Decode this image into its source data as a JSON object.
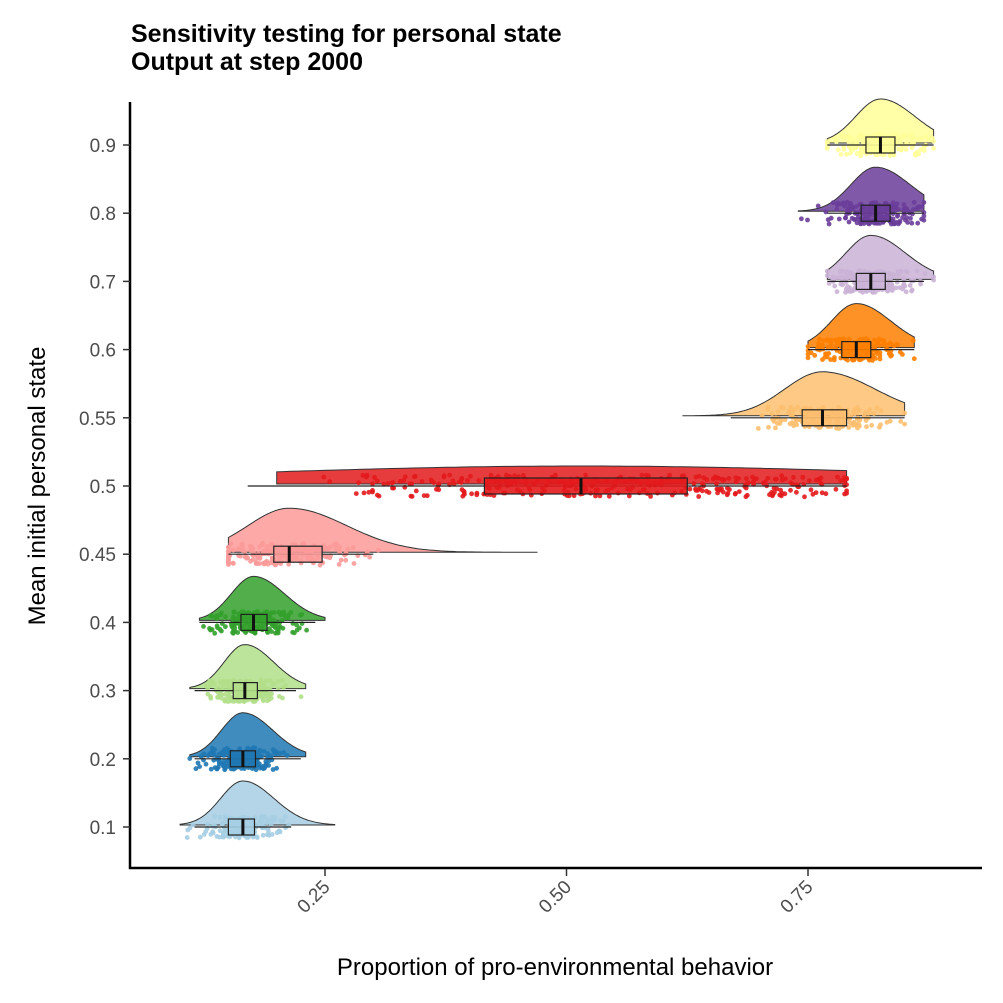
{
  "chart_data": {
    "type": "raincloud",
    "title": "Sensitivity testing for personal state",
    "subtitle": "Output at step 2000",
    "xlabel": "Proportion of pro-environmental behavior",
    "ylabel": "Mean initial personal state",
    "xlim": [
      0.05,
      0.91
    ],
    "x_ticks": [
      "0.25",
      "0.50",
      "0.75"
    ],
    "x_tick_values": [
      0.25,
      0.5,
      0.75
    ],
    "y_ticks": [
      "0.1",
      "0.2",
      "0.3",
      "0.4",
      "0.45",
      "0.5",
      "0.55",
      "0.6",
      "0.7",
      "0.8",
      "0.9"
    ],
    "grid": false,
    "legend": "none",
    "series": [
      {
        "name": "0.1",
        "color": "#a6cee3",
        "min": 0.1,
        "q1": 0.15,
        "median": 0.165,
        "q3": 0.177,
        "max": 0.26,
        "whisker_low": 0.115,
        "whisker_high": 0.215,
        "spread": 0.025
      },
      {
        "name": "0.2",
        "color": "#1f78b4",
        "min": 0.11,
        "q1": 0.152,
        "median": 0.165,
        "q3": 0.178,
        "max": 0.23,
        "whisker_low": 0.115,
        "whisker_high": 0.225,
        "spread": 0.022
      },
      {
        "name": "0.3",
        "color": "#b2df8a",
        "min": 0.11,
        "q1": 0.155,
        "median": 0.167,
        "q3": 0.18,
        "max": 0.23,
        "whisker_low": 0.115,
        "whisker_high": 0.22,
        "spread": 0.022
      },
      {
        "name": "0.4",
        "color": "#33a02c",
        "min": 0.12,
        "q1": 0.163,
        "median": 0.176,
        "q3": 0.19,
        "max": 0.25,
        "whisker_low": 0.12,
        "whisker_high": 0.24,
        "spread": 0.024
      },
      {
        "name": "0.45",
        "color": "#fb9a99",
        "min": 0.15,
        "q1": 0.197,
        "median": 0.213,
        "q3": 0.247,
        "max": 0.47,
        "whisker_low": 0.15,
        "whisker_high": 0.3,
        "spread": 0.04
      },
      {
        "name": "0.5",
        "color": "#e31a1c",
        "min": 0.2,
        "q1": 0.415,
        "median": 0.515,
        "q3": 0.625,
        "max": 0.79,
        "whisker_low": 0.17,
        "whisker_high": 0.79,
        "spread": 0.14
      },
      {
        "name": "0.55",
        "color": "#fdbf6f",
        "min": 0.62,
        "q1": 0.744,
        "median": 0.765,
        "q3": 0.79,
        "max": 0.85,
        "whisker_low": 0.67,
        "whisker_high": 0.85,
        "spread": 0.035
      },
      {
        "name": "0.6",
        "color": "#ff7f00",
        "min": 0.75,
        "q1": 0.785,
        "median": 0.8,
        "q3": 0.815,
        "max": 0.86,
        "whisker_low": 0.75,
        "whisker_high": 0.86,
        "spread": 0.02
      },
      {
        "name": "0.7",
        "color": "#cab2d6",
        "min": 0.77,
        "q1": 0.8,
        "median": 0.815,
        "q3": 0.83,
        "max": 0.88,
        "whisker_low": 0.77,
        "whisker_high": 0.87,
        "spread": 0.02
      },
      {
        "name": "0.8",
        "color": "#6a3d9a",
        "min": 0.74,
        "q1": 0.805,
        "median": 0.82,
        "q3": 0.835,
        "max": 0.87,
        "whisker_low": 0.77,
        "whisker_high": 0.87,
        "spread": 0.02
      },
      {
        "name": "0.9",
        "color": "#ffff99",
        "min": 0.77,
        "q1": 0.81,
        "median": 0.825,
        "q3": 0.84,
        "max": 0.88,
        "whisker_low": 0.77,
        "whisker_high": 0.88,
        "spread": 0.02
      }
    ]
  }
}
